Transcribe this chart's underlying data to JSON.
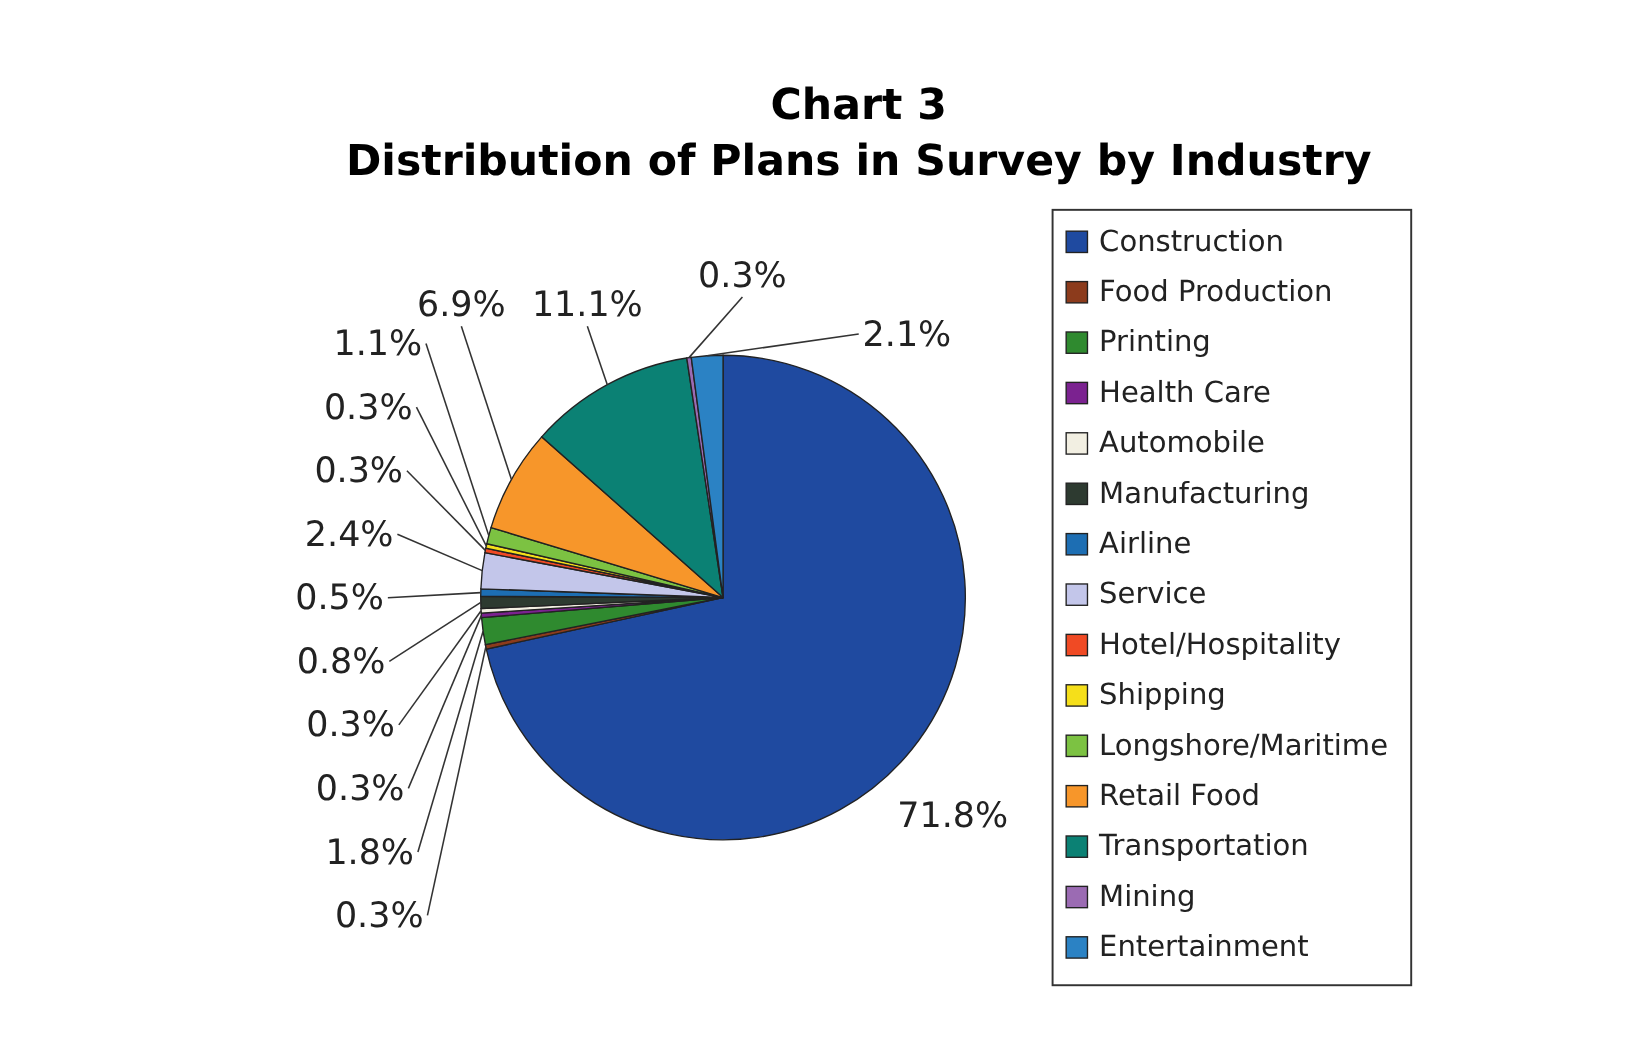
{
  "chart_data": {
    "type": "pie",
    "title": "Chart 3",
    "subtitle": "Distribution of Plans in Survey by Industry",
    "categories": [
      "Construction",
      "Food Production",
      "Printing",
      "Health Care",
      "Automobile",
      "Manufacturing",
      "Airline",
      "Service",
      "Hotel/Hospitality",
      "Shipping",
      "Longshore/Maritime",
      "Retail Food",
      "Transportation",
      "Mining",
      "Entertainment"
    ],
    "values": [
      71.8,
      0.3,
      1.8,
      0.3,
      0.3,
      0.8,
      0.5,
      2.4,
      0.3,
      0.3,
      1.1,
      6.9,
      11.1,
      0.3,
      2.1
    ],
    "value_labels": [
      "71.8%",
      "0.3%",
      "1.8%",
      "0.3%",
      "0.3%",
      "0.8%",
      "0.5%",
      "2.4%",
      "0.3%",
      "0.3%",
      "1.1%",
      "6.9%",
      "11.1%",
      "0.3%",
      "2.1%"
    ],
    "colors": [
      "#1f4aa0",
      "#8c3b1c",
      "#2f8a2f",
      "#7b2290",
      "#f2efe2",
      "#2d3a30",
      "#1d6eb3",
      "#c3c6ea",
      "#f04a24",
      "#f5df1a",
      "#7cc242",
      "#f7962a",
      "#0b8174",
      "#9b6bb3",
      "#2b82c4"
    ],
    "legend": "right"
  }
}
